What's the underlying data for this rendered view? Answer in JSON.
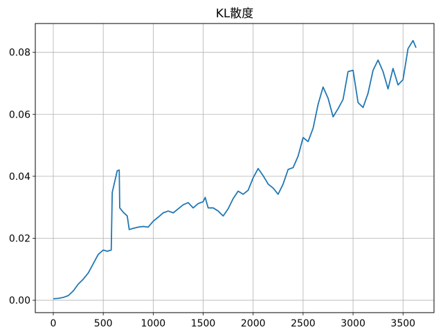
{
  "chart_data": {
    "type": "line",
    "title": "KL散度",
    "xlabel": "",
    "ylabel": "",
    "xlim": [
      -180,
      3810
    ],
    "ylim": [
      -0.004,
      0.0893
    ],
    "x_ticks": [
      0,
      500,
      1000,
      1500,
      2000,
      2500,
      3000,
      3500
    ],
    "x_tick_labels": [
      "0",
      "500",
      "1000",
      "1500",
      "2000",
      "2500",
      "3000",
      "3500"
    ],
    "y_ticks": [
      0.0,
      0.02,
      0.04,
      0.06,
      0.08
    ],
    "y_tick_labels": [
      "0.00",
      "0.02",
      "0.04",
      "0.06",
      "0.08"
    ],
    "grid": true,
    "series": [
      {
        "color": "#1f77b4",
        "points": [
          [
            0,
            0.0005
          ],
          [
            50,
            0.0006
          ],
          [
            100,
            0.0009
          ],
          [
            150,
            0.0015
          ],
          [
            200,
            0.003
          ],
          [
            250,
            0.0052
          ],
          [
            300,
            0.0068
          ],
          [
            350,
            0.0088
          ],
          [
            400,
            0.0118
          ],
          [
            450,
            0.0148
          ],
          [
            500,
            0.0162
          ],
          [
            540,
            0.0158
          ],
          [
            580,
            0.0162
          ],
          [
            590,
            0.0348
          ],
          [
            620,
            0.039
          ],
          [
            640,
            0.0418
          ],
          [
            660,
            0.042
          ],
          [
            665,
            0.0298
          ],
          [
            700,
            0.0284
          ],
          [
            740,
            0.0272
          ],
          [
            760,
            0.0228
          ],
          [
            800,
            0.0232
          ],
          [
            850,
            0.0236
          ],
          [
            900,
            0.0238
          ],
          [
            950,
            0.0236
          ],
          [
            1000,
            0.0255
          ],
          [
            1050,
            0.0268
          ],
          [
            1100,
            0.0282
          ],
          [
            1150,
            0.0288
          ],
          [
            1200,
            0.0282
          ],
          [
            1250,
            0.0295
          ],
          [
            1300,
            0.0308
          ],
          [
            1350,
            0.0315
          ],
          [
            1400,
            0.0298
          ],
          [
            1450,
            0.0312
          ],
          [
            1500,
            0.0318
          ],
          [
            1520,
            0.0332
          ],
          [
            1550,
            0.0298
          ],
          [
            1600,
            0.0298
          ],
          [
            1650,
            0.0288
          ],
          [
            1700,
            0.0272
          ],
          [
            1750,
            0.0295
          ],
          [
            1800,
            0.0328
          ],
          [
            1850,
            0.0352
          ],
          [
            1900,
            0.0342
          ],
          [
            1950,
            0.0355
          ],
          [
            2000,
            0.0395
          ],
          [
            2050,
            0.0425
          ],
          [
            2100,
            0.0402
          ],
          [
            2150,
            0.0375
          ],
          [
            2200,
            0.0362
          ],
          [
            2250,
            0.0342
          ],
          [
            2300,
            0.0375
          ],
          [
            2350,
            0.0422
          ],
          [
            2400,
            0.0428
          ],
          [
            2450,
            0.0465
          ],
          [
            2500,
            0.0525
          ],
          [
            2550,
            0.0512
          ],
          [
            2600,
            0.0555
          ],
          [
            2650,
            0.0632
          ],
          [
            2700,
            0.0688
          ],
          [
            2750,
            0.0652
          ],
          [
            2800,
            0.0592
          ],
          [
            2850,
            0.0618
          ],
          [
            2900,
            0.0648
          ],
          [
            2950,
            0.0738
          ],
          [
            3000,
            0.0742
          ],
          [
            3050,
            0.0638
          ],
          [
            3100,
            0.0622
          ],
          [
            3150,
            0.0668
          ],
          [
            3200,
            0.0742
          ],
          [
            3250,
            0.0775
          ],
          [
            3300,
            0.0738
          ],
          [
            3350,
            0.0682
          ],
          [
            3400,
            0.0748
          ],
          [
            3450,
            0.0695
          ],
          [
            3500,
            0.0712
          ],
          [
            3550,
            0.0812
          ],
          [
            3600,
            0.0838
          ],
          [
            3630,
            0.0815
          ]
        ]
      }
    ]
  }
}
